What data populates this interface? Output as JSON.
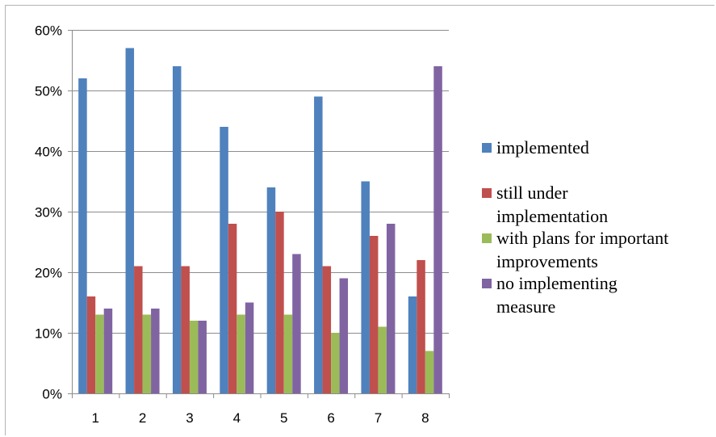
{
  "chart_data": {
    "type": "bar",
    "categories": [
      "1",
      "2",
      "3",
      "4",
      "5",
      "6",
      "7",
      "8"
    ],
    "y_ticks": [
      "0%",
      "10%",
      "20%",
      "30%",
      "40%",
      "50%",
      "60%"
    ],
    "ylim": [
      0,
      60
    ],
    "grid": true,
    "legend_position": "right",
    "series": [
      {
        "name": "implemented",
        "lines": [
          "implemented"
        ],
        "color": "#4f81bd",
        "values": [
          52,
          57,
          54,
          44,
          34,
          49,
          35,
          16
        ]
      },
      {
        "name": "still under implementation",
        "lines": [
          "still under",
          "implementation"
        ],
        "color": "#c0504d",
        "values": [
          16,
          21,
          21,
          28,
          30,
          21,
          26,
          22
        ]
      },
      {
        "name": "with plans for important improvements",
        "lines": [
          "with plans for important",
          "improvements"
        ],
        "color": "#9bbb59",
        "values": [
          13,
          13,
          12,
          13,
          13,
          10,
          11,
          7
        ]
      },
      {
        "name": "no implementing measure",
        "lines": [
          "no implementing",
          "measure"
        ],
        "color": "#8064a2",
        "values": [
          14,
          14,
          12,
          15,
          23,
          19,
          28,
          54
        ]
      }
    ]
  }
}
